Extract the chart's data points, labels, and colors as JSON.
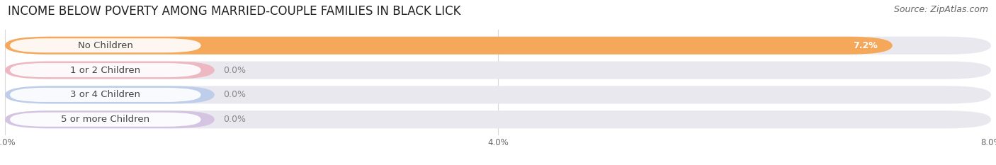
{
  "title": "INCOME BELOW POVERTY AMONG MARRIED-COUPLE FAMILIES IN BLACK LICK",
  "source": "Source: ZipAtlas.com",
  "categories": [
    "No Children",
    "1 or 2 Children",
    "3 or 4 Children",
    "5 or more Children"
  ],
  "values": [
    7.2,
    0.0,
    0.0,
    0.0
  ],
  "bar_colors": [
    "#f5a85a",
    "#f2929e",
    "#9ab8e8",
    "#c4a8d8"
  ],
  "xlim_max": 8.0,
  "xticks": [
    0.0,
    4.0,
    8.0
  ],
  "xticklabels": [
    "0.0%",
    "4.0%",
    "8.0%"
  ],
  "bg_color": "#ffffff",
  "bar_bg_color": "#e8e8ee",
  "row_sep_color": "#ffffff",
  "title_fontsize": 12,
  "source_fontsize": 9,
  "label_fontsize": 9.5,
  "value_fontsize": 9
}
